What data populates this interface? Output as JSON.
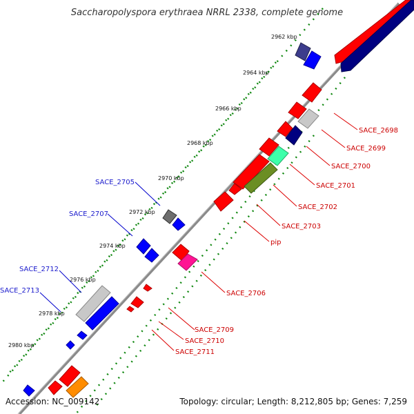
{
  "title": "Saccharopolyspora erythraea NRRL 2338, complete genome",
  "footer": {
    "accession": "Accession: NC_009142",
    "topology": "Topology: circular; Length: 8,212,805 bp; Genes: 7,259"
  },
  "scale_labels": [
    "2962 kbp",
    "2964 kbp",
    "2966 kbp",
    "2968 kbp",
    "2970 kbp",
    "2972 kbp",
    "2974 kbp",
    "2976 kbp",
    "2978 kbp",
    "2980 kbp"
  ],
  "gene_labels": {
    "right": [
      "SACE_2698",
      "SACE_2699",
      "SACE_2700",
      "SACE_2701",
      "SACE_2702",
      "SACE_2703",
      "pip",
      "SACE_2706",
      "SACE_2709",
      "SACE_2710",
      "SACE_2711"
    ],
    "left": [
      "SACE_2705",
      "SACE_2707",
      "SACE_2712",
      "SACE_2713"
    ]
  },
  "colors": {
    "red": "#ff0000",
    "blue": "#0000ff",
    "navy": "#000080",
    "slate": "#3c3c8c",
    "grey": "#c8c8c8",
    "dark_grey": "#6e6e6e",
    "mint": "#3dffaa",
    "olive": "#6b8e23",
    "magenta": "#ff1493",
    "orange": "#ff8c00",
    "backbone": "#888888",
    "tick": "#118811"
  }
}
